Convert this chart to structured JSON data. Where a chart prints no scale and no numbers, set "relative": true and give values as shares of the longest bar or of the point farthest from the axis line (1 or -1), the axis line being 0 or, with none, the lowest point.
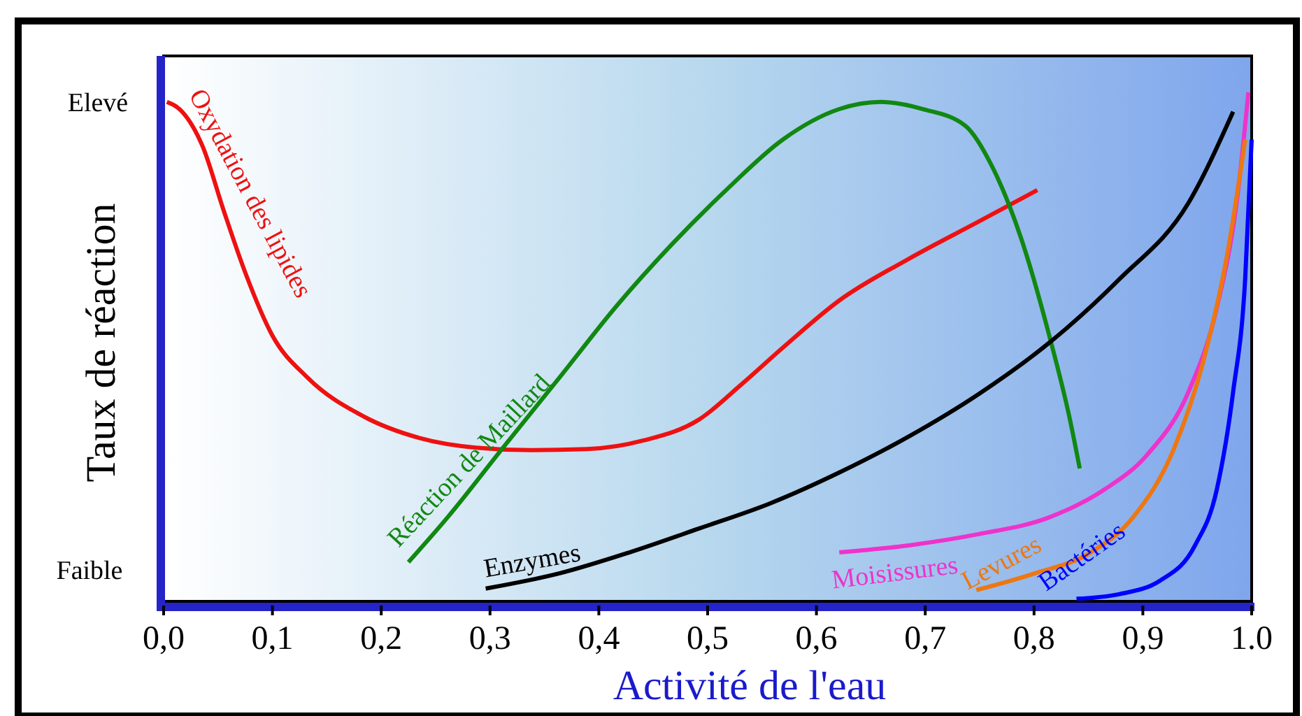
{
  "chart_data": {
    "type": "line",
    "relative": true,
    "xlabel": "Activité de l'eau",
    "ylabel": "Taux de réaction",
    "annotations": [
      "Elevé",
      "Faible"
    ],
    "xlim": [
      0,
      1
    ],
    "xticks": [
      {
        "value": 0,
        "label": "0,0"
      },
      {
        "value": 0.1,
        "label": "0,1"
      },
      {
        "value": 0.2,
        "label": "0,2"
      },
      {
        "value": 0.3,
        "label": "0,3"
      },
      {
        "value": 0.4,
        "label": "0,4"
      },
      {
        "value": 0.5,
        "label": "0,5"
      },
      {
        "value": 0.6,
        "label": "0,6"
      },
      {
        "value": 0.7,
        "label": "0,7"
      },
      {
        "value": 0.8,
        "label": "0,8"
      },
      {
        "value": 0.9,
        "label": "0,9"
      },
      {
        "value": 1,
        "label": "1.0"
      }
    ],
    "grid": false,
    "marker": "none",
    "line_style": "solid",
    "series": [
      {
        "name": "Oxydation des lipides",
        "color": "#ee1111",
        "x": [
          0.003,
          0.017,
          0.036,
          0.055,
          0.075,
          0.1,
          0.132,
          0.184,
          0.235,
          0.287,
          0.338,
          0.389,
          0.441,
          0.492,
          0.531,
          0.57,
          0.621,
          0.685,
          0.75,
          0.803
        ],
        "values": [
          0.981,
          0.962,
          0.893,
          0.769,
          0.646,
          0.522,
          0.44,
          0.363,
          0.321,
          0.302,
          0.297,
          0.299,
          0.316,
          0.357,
          0.426,
          0.5,
          0.591,
          0.673,
          0.747,
          0.808
        ]
      },
      {
        "name": "Réaction de Maillard",
        "color": "#118811",
        "x": [
          0.225,
          0.261,
          0.312,
          0.364,
          0.415,
          0.467,
          0.518,
          0.569,
          0.621,
          0.659,
          0.698,
          0.737,
          0.762,
          0.788,
          0.814,
          0.833,
          0.842
        ],
        "values": [
          0.077,
          0.165,
          0.302,
          0.44,
          0.577,
          0.701,
          0.81,
          0.907,
          0.967,
          0.981,
          0.967,
          0.934,
          0.852,
          0.714,
          0.522,
          0.357,
          0.261
        ]
      },
      {
        "name": "Enzymes",
        "color": "#000000",
        "x": [
          0.296,
          0.364,
          0.428,
          0.492,
          0.557,
          0.621,
          0.685,
          0.749,
          0.814,
          0.878,
          0.942,
          0.983
        ],
        "values": [
          0.025,
          0.055,
          0.096,
          0.143,
          0.192,
          0.253,
          0.324,
          0.407,
          0.508,
          0.632,
          0.783,
          0.962
        ]
      },
      {
        "name": "Moisissures",
        "color": "#ee33cc",
        "x": [
          0.621,
          0.685,
          0.749,
          0.814,
          0.865,
          0.904,
          0.942,
          0.968,
          0.987,
          0.997
        ],
        "values": [
          0.096,
          0.11,
          0.132,
          0.165,
          0.22,
          0.288,
          0.412,
          0.577,
          0.797,
          1
        ]
      },
      {
        "name": "Levures",
        "color": "#ee7711",
        "x": [
          0.747,
          0.801,
          0.852,
          0.891,
          0.929,
          0.955,
          0.978,
          0.994
        ],
        "values": [
          0.022,
          0.055,
          0.096,
          0.165,
          0.302,
          0.467,
          0.687,
          0.907
        ]
      },
      {
        "name": "Bactéries",
        "color": "#0000ff",
        "x": [
          0.839,
          0.878,
          0.916,
          0.948,
          0.968,
          0.983,
          0.994,
          1
        ],
        "values": [
          0.005,
          0.014,
          0.041,
          0.11,
          0.22,
          0.412,
          0.632,
          0.907
        ]
      }
    ]
  }
}
